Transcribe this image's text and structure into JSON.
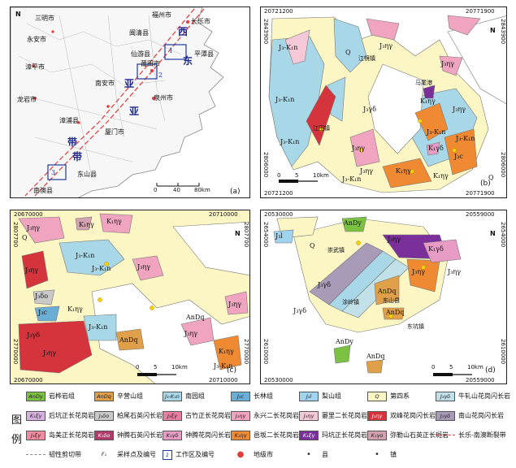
{
  "panel_a": {
    "label": "(a)",
    "north": "N",
    "cities": [
      "三明市",
      "福州市",
      "长乐市",
      "永安市",
      "闽清县",
      "平潭县",
      "漳平市",
      "仙游县",
      "莆田市",
      "南安市",
      "泉州市",
      "龙岩市",
      "漳浦县",
      "厦门市",
      "东山县",
      "南澳县"
    ],
    "belt_words": [
      "西",
      "东",
      "亚",
      "亚",
      "带",
      "带"
    ],
    "area_numbers": [
      "1",
      "2",
      "3"
    ],
    "scale": [
      "0",
      "40",
      "80km"
    ]
  },
  "panel_b": {
    "label": "(b)",
    "north": "N",
    "coords": {
      "top_left": "20721200",
      "top_right": "20771900",
      "bottom_left": "20721200",
      "bottom_right": "20771900",
      "left_top": "2843900",
      "left_bottom": "2806000",
      "right_top": "2843900",
      "right_bottom": "2806000"
    },
    "scale": [
      "0",
      "5",
      "10km"
    ],
    "towns": [
      "江镜镇",
      "马尾港",
      "江田镇"
    ],
    "units": [
      "J₃-K₁n",
      "J₃ηγ",
      "J₃-K₁n",
      "J₃ηγ",
      "Q",
      "J₃-K₁n",
      "K₁ηγ",
      "J₃γδ",
      "J₃-K₁n",
      "J₃ηγ",
      "J₃ηγ",
      "K₁γδ",
      "K₁ηγ",
      "J₃-K₁n",
      "J₃c",
      "K₁ηγ",
      "Q",
      "J₃ηγ",
      "J₃-K₁n"
    ]
  },
  "panel_c": {
    "label": "(c)",
    "north": "N",
    "coords": {
      "top_left": "20670000",
      "top_right": "20710000",
      "bottom_left": "20670000",
      "bottom_right": "20710000",
      "left_top": "2807700",
      "left_bottom": "2770000",
      "right_top": "2807700",
      "right_bottom": "2770000"
    },
    "scale": [
      "0",
      "5",
      "10km"
    ],
    "units": [
      "K₁ηγ",
      "J₃ηγ",
      "Q",
      "J₃-K₁n",
      "J₃ηγ",
      "J₃-K₁n",
      "J₃δο",
      "J₃c",
      "K₁ηγ",
      "J₃γδ",
      "J₃ηγ",
      "J₃-K₁n",
      "K₁ηγ",
      "J₃ηγ",
      "AnDq",
      "J₃ηγ",
      "AnDq",
      "J₃ηγ",
      "K₁ηγ",
      "J₃-K₁n"
    ]
  },
  "panel_d": {
    "label": "(d)",
    "north": "N",
    "coords": {
      "top_left": "20530000",
      "top_right": "20559000",
      "bottom_left": "20530000",
      "bottom_right": "20559000",
      "left_top": "2654000",
      "left_bottom": "2610000",
      "right_top": "2654000",
      "right_bottom": "2610000"
    },
    "scale": [
      "0",
      "5",
      "10km"
    ],
    "units": [
      "AnDy",
      "J₃l",
      "J₃ηγ",
      "K₁γδ",
      "J₃γδ",
      "Q",
      "AnDq",
      "J₃γδ",
      "J₃ηγ",
      "J₃ηγ",
      "AnDq",
      "AnDy",
      "AnDq"
    ],
    "towns": [
      "崇武镇",
      "涂岭镇",
      "东山县",
      "东坑镇"
    ]
  },
  "legend": {
    "side_label": [
      "图",
      "例"
    ],
    "items": [
      {
        "code": "AnDy",
        "label": "岩桦岩组",
        "color": "#7cc242"
      },
      {
        "code": "AnDq",
        "label": "辛营山组",
        "color": "#e0a04a"
      },
      {
        "code": "J₃-K₁n",
        "label": "南园组",
        "color": "#a8d8e8"
      },
      {
        "code": "J₃c",
        "label": "长林组",
        "color": "#6aaed6"
      },
      {
        "code": "J₃l",
        "label": "梨山组",
        "color": "#9fd3ef"
      },
      {
        "code": "Q",
        "label": "第四系",
        "color": "#fbf6c3"
      },
      {
        "code": "J₃γδ",
        "label": "牛轧山花岗闪长岩",
        "color": "#c1e0e8"
      },
      {
        "code": "K₁ξγ",
        "label": "后坑正长花岗岩",
        "color": "#d7b1e0"
      },
      {
        "code": "J₃δο",
        "label": "柏尾石英闪长岩",
        "color": "#c9c9c9"
      },
      {
        "code": "J₃ξγ",
        "label": "古竹正长花岗岩",
        "color": "#e87ea1"
      },
      {
        "code": "J₃ηγ",
        "label": "永兴二长花岗岩",
        "color": "#f1a4c0"
      },
      {
        "code": "J₃ηγ",
        "label": "窭里二长花岗岩",
        "color": "#f5c8d8"
      },
      {
        "code": "J₃ηγ",
        "label": "双峰花岗闪长岩",
        "color": "#d6343c"
      },
      {
        "code": "J₃γδ",
        "label": "南山花岗闪长岩",
        "color": "#a79bb8"
      },
      {
        "code": "J₃ξγ",
        "label": "岛美正长花岗岩",
        "color": "#f08ba0"
      },
      {
        "code": "K₁δο",
        "label": "钟腾石英闪长岩",
        "color": "#b23b6b"
      },
      {
        "code": "K₁γδ",
        "label": "钟腾花岗闪长岩",
        "color": "#e89bc5"
      },
      {
        "code": "K₁ηγ",
        "label": "邑坂二长花岗岩",
        "color": "#f08a32"
      },
      {
        "code": "K₁ξγ",
        "label": "玛坑正长花岗岩",
        "color": "#7a2f9a"
      },
      {
        "code": "K₁γο",
        "label": "弥勒山石英正长斑岩",
        "color": "#d4a1b0"
      },
      {
        "code": "",
        "label": "长乐-南澳断裂带",
        "color": "#e23b3b"
      },
      {
        "code": "",
        "label": "韧性剪切带",
        "color": "#888888"
      },
      {
        "code": "F₁",
        "label": "采样点及编号",
        "color": "#f5d200"
      },
      {
        "code": "1",
        "label": "工作区及编号",
        "color": "#1e3aa0"
      },
      {
        "code": "",
        "label": "地级市",
        "color": "#e23b3b"
      },
      {
        "code": "",
        "label": "县",
        "color": "#333333"
      },
      {
        "code": "",
        "label": "镇",
        "color": "#333333"
      }
    ]
  }
}
